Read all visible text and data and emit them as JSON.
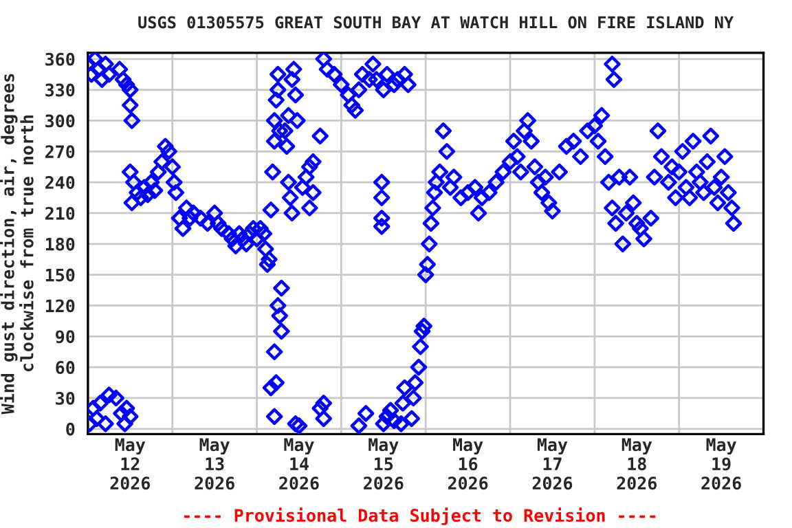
{
  "chart_data": {
    "type": "scatter",
    "title": "USGS 01305575 GREAT SOUTH BAY AT WATCH HILL ON FIRE ISLAND NY",
    "ylabel": "Wind gust direction, air, degrees\nclockwise from true north",
    "annotations": [
      "---- Provisional Data Subject to Revision ----"
    ],
    "marker": "diamond",
    "grid": true,
    "xlim": [
      "2026-05-12T00:00",
      "2026-05-20T00:00"
    ],
    "xticks": [
      {
        "value": "2026-05-12T00:00",
        "label": null
      },
      {
        "value": "2026-05-12T12:00",
        "label": "May\n12\n2026"
      },
      {
        "value": "2026-05-13T00:00",
        "label": null
      },
      {
        "value": "2026-05-13T12:00",
        "label": "May\n13\n2026"
      },
      {
        "value": "2026-05-14T00:00",
        "label": null
      },
      {
        "value": "2026-05-14T12:00",
        "label": "May\n14\n2026"
      },
      {
        "value": "2026-05-15T00:00",
        "label": null
      },
      {
        "value": "2026-05-15T12:00",
        "label": "May\n15\n2026"
      },
      {
        "value": "2026-05-16T00:00",
        "label": null
      },
      {
        "value": "2026-05-16T12:00",
        "label": "May\n16\n2026"
      },
      {
        "value": "2026-05-17T00:00",
        "label": null
      },
      {
        "value": "2026-05-17T12:00",
        "label": "May\n17\n2026"
      },
      {
        "value": "2026-05-18T00:00",
        "label": null
      },
      {
        "value": "2026-05-18T12:00",
        "label": "May\n18\n2026"
      },
      {
        "value": "2026-05-19T00:00",
        "label": null
      },
      {
        "value": "2026-05-19T12:00",
        "label": "May\n19\n2026"
      },
      {
        "value": "2026-05-20T00:00",
        "label": null
      }
    ],
    "ylim": [
      -5,
      366
    ],
    "yticks": [
      0,
      30,
      60,
      90,
      120,
      150,
      180,
      210,
      240,
      270,
      300,
      330,
      360
    ],
    "series": [
      {
        "color": "#0000ff",
        "x": [
          "2026-05-12T00:00",
          "2026-05-12T00:30",
          "2026-05-12T01:00",
          "2026-05-12T01:30",
          "2026-05-12T02:00",
          "2026-05-12T02:30",
          "2026-05-12T03:00",
          "2026-05-12T03:30",
          "2026-05-12T04:00",
          "2026-05-12T05:00",
          "2026-05-12T05:00",
          "2026-05-12T06:00",
          "2026-05-12T06:00",
          "2026-05-12T08:00",
          "2026-05-12T09:00",
          "2026-05-12T09:30",
          "2026-05-12T10:00",
          "2026-05-12T10:30",
          "2026-05-12T11:00",
          "2026-05-12T11:00",
          "2026-05-12T12:00",
          "2026-05-12T12:00",
          "2026-05-12T12:00",
          "2026-05-12T12:30",
          "2026-05-12T12:00",
          "2026-05-12T12:30",
          "2026-05-12T13:00",
          "2026-05-12T14:00",
          "2026-05-12T15:00",
          "2026-05-12T16:00",
          "2026-05-12T17:00",
          "2026-05-12T18:00",
          "2026-05-12T19:00",
          "2026-05-12T20:00",
          "2026-05-12T21:00",
          "2026-05-12T22:00",
          "2026-05-12T23:00",
          "2026-05-13T00:00",
          "2026-05-13T00:30",
          "2026-05-13T01:00",
          "2026-05-13T02:00",
          "2026-05-13T03:00",
          "2026-05-13T04:00",
          "2026-05-13T05:00",
          "2026-05-13T06:00",
          "2026-05-13T08:00",
          "2026-05-13T10:00",
          "2026-05-13T12:00",
          "2026-05-13T13:00",
          "2026-05-13T14:00",
          "2026-05-13T16:00",
          "2026-05-13T17:00",
          "2026-05-13T18:00",
          "2026-05-13T19:00",
          "2026-05-13T20:00",
          "2026-05-13T21:00",
          "2026-05-13T22:00",
          "2026-05-13T23:00",
          "2026-05-14T00:00",
          "2026-05-14T01:00",
          "2026-05-14T02:00",
          "2026-05-14T02:30",
          "2026-05-14T03:00",
          "2026-05-14T03:30",
          "2026-05-14T04:00",
          "2026-05-14T04:30",
          "2026-05-14T05:00",
          "2026-05-14T05:00",
          "2026-05-14T05:30",
          "2026-05-14T06:00",
          "2026-05-14T06:00",
          "2026-05-14T06:30",
          "2026-05-14T04:00",
          "2026-05-14T05:00",
          "2026-05-14T05:30",
          "2026-05-14T05:00",
          "2026-05-14T06:00",
          "2026-05-14T06:30",
          "2026-05-14T07:00",
          "2026-05-14T07:00",
          "2026-05-14T08:00",
          "2026-05-14T08:30",
          "2026-05-14T09:00",
          "2026-05-14T09:00",
          "2026-05-14T09:30",
          "2026-05-14T10:00",
          "2026-05-14T10:30",
          "2026-05-14T11:00",
          "2026-05-14T11:30",
          "2026-05-14T10:00",
          "2026-05-14T11:00",
          "2026-05-14T12:00",
          "2026-05-14T13:00",
          "2026-05-14T14:00",
          "2026-05-14T15:00",
          "2026-05-14T16:00",
          "2026-05-14T15:00",
          "2026-05-14T16:00",
          "2026-05-14T18:00",
          "2026-05-14T18:00",
          "2026-05-14T19:00",
          "2026-05-14T19:00",
          "2026-05-14T19:00",
          "2026-05-14T20:00",
          "2026-05-14T22:00",
          "2026-05-15T00:00",
          "2026-05-15T02:00",
          "2026-05-15T03:00",
          "2026-05-15T04:00",
          "2026-05-15T05:00",
          "2026-05-15T06:00",
          "2026-05-15T08:00",
          "2026-05-15T09:00",
          "2026-05-15T10:00",
          "2026-05-15T12:00",
          "2026-05-15T13:00",
          "2026-05-15T15:00",
          "2026-05-15T16:00",
          "2026-05-15T18:00",
          "2026-05-15T19:00",
          "2026-05-15T11:30",
          "2026-05-15T11:30",
          "2026-05-15T11:30",
          "2026-05-15T11:30",
          "2026-05-15T05:00",
          "2026-05-15T07:00",
          "2026-05-15T12:00",
          "2026-05-15T13:00",
          "2026-05-15T14:00",
          "2026-05-15T15:00",
          "2026-05-15T17:00",
          "2026-05-15T17:30",
          "2026-05-15T18:00",
          "2026-05-15T20:00",
          "2026-05-15T20:30",
          "2026-05-15T21:00",
          "2026-05-15T22:00",
          "2026-05-15T22:30",
          "2026-05-15T23:00",
          "2026-05-15T23:30",
          "2026-05-16T00:00",
          "2026-05-16T00:30",
          "2026-05-16T01:00",
          "2026-05-16T01:30",
          "2026-05-16T02:00",
          "2026-05-16T02:30",
          "2026-05-16T03:00",
          "2026-05-16T04:00",
          "2026-05-16T05:00",
          "2026-05-16T06:00",
          "2026-05-16T07:00",
          "2026-05-16T08:00",
          "2026-05-16T10:00",
          "2026-05-16T12:00",
          "2026-05-16T14:00",
          "2026-05-16T15:00",
          "2026-05-16T16:00",
          "2026-05-16T18:00",
          "2026-05-16T20:00",
          "2026-05-16T22:00",
          "2026-05-17T00:00",
          "2026-05-17T01:00",
          "2026-05-17T02:00",
          "2026-05-17T03:00",
          "2026-05-17T04:00",
          "2026-05-17T05:00",
          "2026-05-17T06:00",
          "2026-05-17T07:00",
          "2026-05-17T08:00",
          "2026-05-17T09:00",
          "2026-05-17T10:00",
          "2026-05-17T11:00",
          "2026-05-17T12:00",
          "2026-05-17T14:00",
          "2026-05-17T16:00",
          "2026-05-17T18:00",
          "2026-05-17T20:00",
          "2026-05-17T22:00",
          "2026-05-18T00:00",
          "2026-05-18T01:00",
          "2026-05-18T02:00",
          "2026-05-18T03:00",
          "2026-05-18T04:00",
          "2026-05-18T05:00",
          "2026-05-18T05:00",
          "2026-05-18T05:30",
          "2026-05-18T06:00",
          "2026-05-18T07:00",
          "2026-05-18T08:00",
          "2026-05-18T09:00",
          "2026-05-18T10:00",
          "2026-05-18T11:00",
          "2026-05-18T12:00",
          "2026-05-18T13:00",
          "2026-05-18T14:00",
          "2026-05-18T16:00",
          "2026-05-18T17:00",
          "2026-05-18T18:00",
          "2026-05-18T19:00",
          "2026-05-18T21:00",
          "2026-05-18T22:00",
          "2026-05-18T23:00",
          "2026-05-19T00:00",
          "2026-05-19T01:00",
          "2026-05-19T02:00",
          "2026-05-19T03:00",
          "2026-05-19T04:00",
          "2026-05-19T05:00",
          "2026-05-19T06:00",
          "2026-05-19T07:00",
          "2026-05-19T08:00",
          "2026-05-19T09:00",
          "2026-05-19T10:00",
          "2026-05-19T11:00",
          "2026-05-19T12:00",
          "2026-05-19T13:00",
          "2026-05-19T14:00",
          "2026-05-19T15:00",
          "2026-05-19T15:30"
        ],
        "values": [
          355,
          5,
          345,
          20,
          360,
          10,
          350,
          25,
          340,
          355,
          5,
          345,
          33,
          30,
          350,
          15,
          340,
          5,
          335,
          20,
          330,
          12,
          315,
          300,
          250,
          220,
          240,
          230,
          225,
          235,
          228,
          240,
          232,
          250,
          260,
          275,
          270,
          255,
          240,
          230,
          205,
          195,
          215,
          205,
          210,
          205,
          200,
          210,
          200,
          195,
          190,
          185,
          178,
          190,
          185,
          180,
          190,
          195,
          185,
          195,
          190,
          175,
          160,
          165,
          213,
          250,
          280,
          300,
          320,
          345,
          330,
          290,
          40,
          12,
          45,
          75,
          120,
          110,
          95,
          137,
          290,
          275,
          305,
          240,
          225,
          340,
          350,
          325,
          300,
          210,
          5,
          3,
          235,
          245,
          255,
          230,
          215,
          260,
          285,
          20,
          10,
          25,
          360,
          350,
          345,
          335,
          325,
          315,
          310,
          330,
          345,
          340,
          355,
          340,
          330,
          345,
          335,
          340,
          345,
          335,
          240,
          225,
          205,
          197,
          3,
          15,
          5,
          12,
          18,
          8,
          5,
          25,
          40,
          10,
          30,
          45,
          60,
          80,
          95,
          100,
          150,
          160,
          180,
          200,
          215,
          230,
          240,
          250,
          290,
          270,
          235,
          245,
          225,
          230,
          235,
          210,
          225,
          230,
          240,
          250,
          260,
          280,
          265,
          250,
          290,
          300,
          280,
          255,
          240,
          230,
          245,
          220,
          212,
          250,
          275,
          280,
          265,
          290,
          295,
          280,
          305,
          265,
          240,
          215,
          355,
          340,
          200,
          245,
          180,
          210,
          245,
          220,
          200,
          195,
          185,
          205,
          245,
          290,
          265,
          240,
          255,
          225,
          250,
          270,
          235,
          225,
          280,
          250,
          240,
          230,
          260,
          285,
          235,
          220,
          245,
          265,
          230,
          215,
          200
        ]
      }
    ]
  }
}
